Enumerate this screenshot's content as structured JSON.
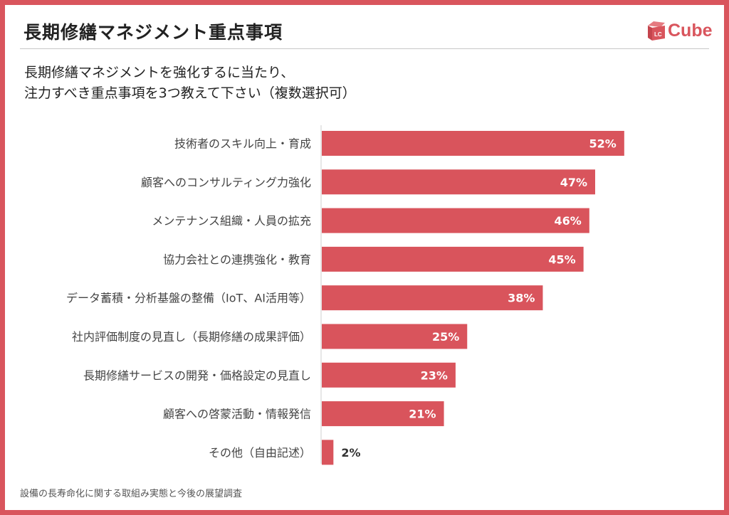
{
  "header": {
    "title": "長期修繕マネジメント重点事項",
    "logo": "LC Cube"
  },
  "question": {
    "line1": "長期修繕マネジメントを強化するに当たり、",
    "line2": "注力すべき重点事項を3つ教えて下さい（複数選択可）"
  },
  "footer": "設備の長寿命化に関する取組み実態と今後の展望調査",
  "colors": {
    "bar": "#d9545c",
    "frame": "#d9555d"
  },
  "chart_data": {
    "type": "bar",
    "orientation": "horizontal",
    "categories": [
      "技術者のスキル向上・育成",
      "顧客へのコンサルティング力強化",
      "メンテナンス組織・人員の拡充",
      "協力会社との連携強化・教育",
      "データ蓄積・分析基盤の整備（IoT、AI活用等）",
      "社内評価制度の見直し（長期修繕の成果評価）",
      "長期修繕サービスの開発・価格設定の見直し",
      "顧客への啓蒙活動・情報発信",
      "その他（自由記述）"
    ],
    "values": [
      52,
      47,
      46,
      45,
      38,
      25,
      23,
      21,
      2
    ],
    "data_labels": [
      "52%",
      "47%",
      "46%",
      "45%",
      "38%",
      "25%",
      "23%",
      "21%",
      "2%"
    ],
    "unit": "%",
    "grid": false
  }
}
